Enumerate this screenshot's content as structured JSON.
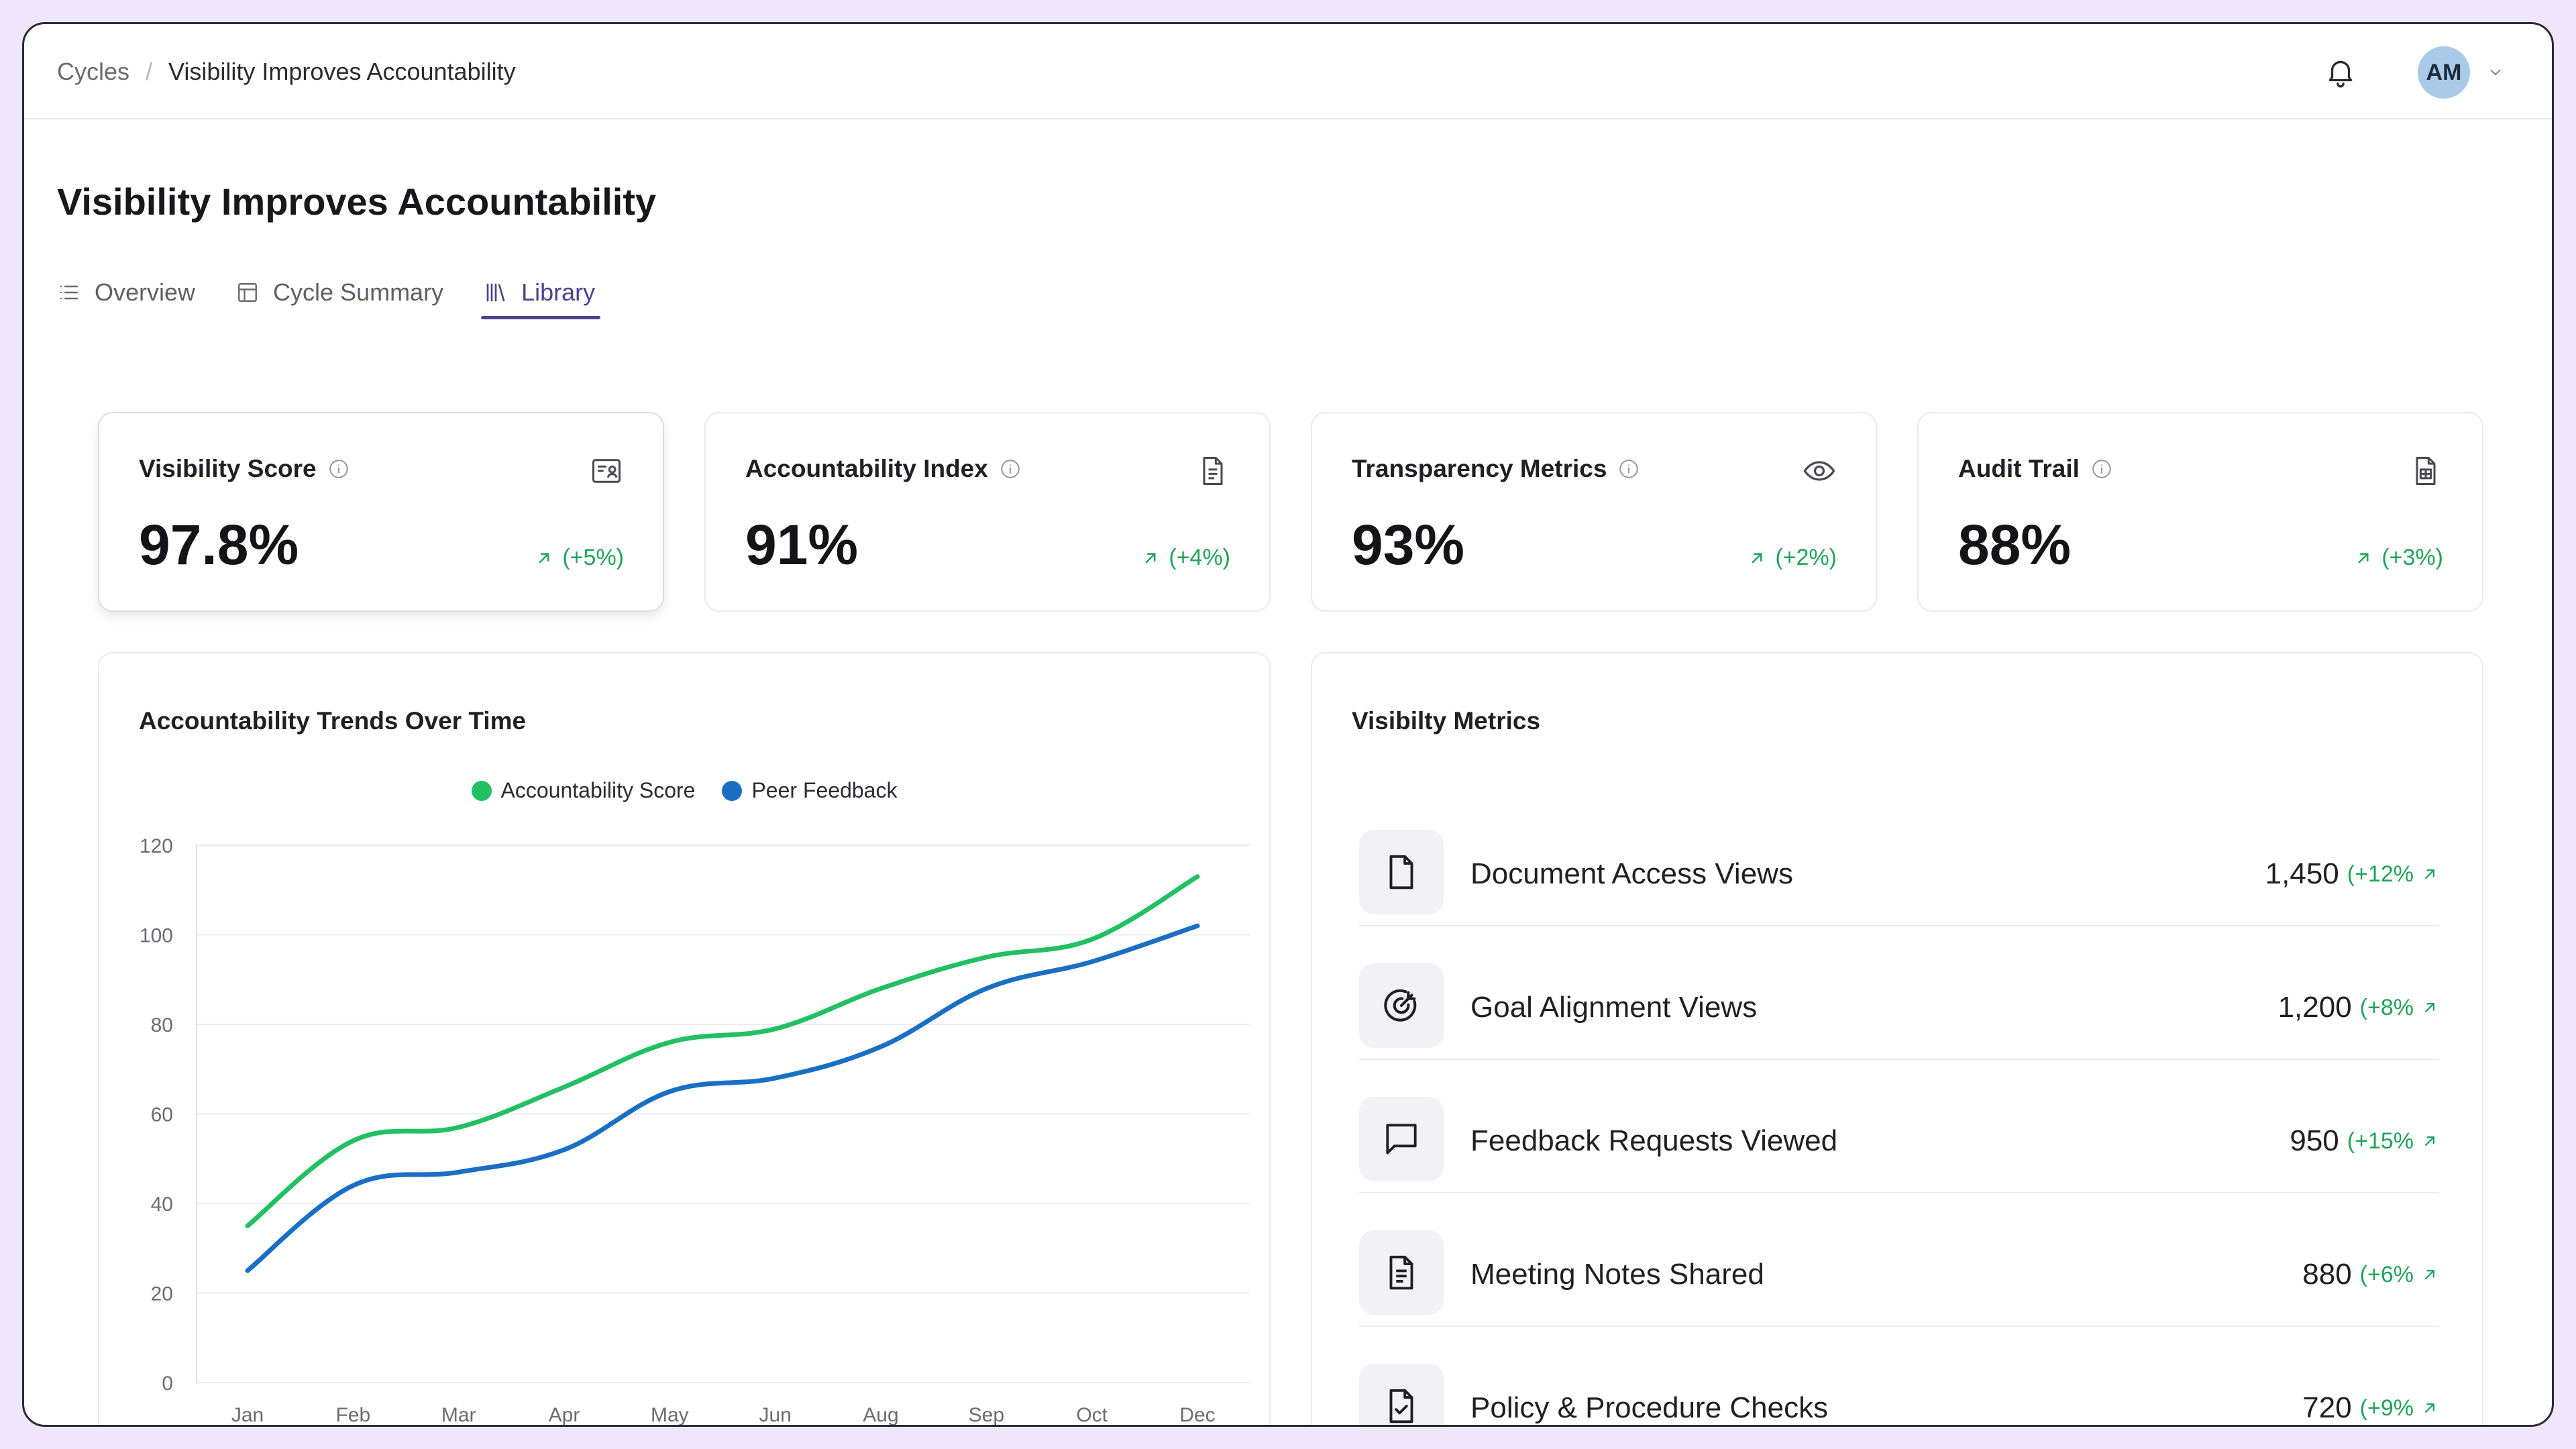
{
  "breadcrumb": {
    "root": "Cycles",
    "separator": "/",
    "current": "Visibility Improves Accountability"
  },
  "header": {
    "avatar_initials": "AM",
    "bell_icon": "bell-icon"
  },
  "page": {
    "title": "Visibility Improves Accountability"
  },
  "tabs": [
    {
      "label": "Overview",
      "icon": "list-icon",
      "active": false
    },
    {
      "label": "Cycle Summary",
      "icon": "layout-icon",
      "active": false
    },
    {
      "label": "Library",
      "icon": "library-icon",
      "active": true
    }
  ],
  "kpis": [
    {
      "title": "Visibility Score",
      "value": "97.8%",
      "delta": "(+5%)",
      "icon": "id-card-icon"
    },
    {
      "title": "Accountability Index",
      "value": "91%",
      "delta": "(+4%)",
      "icon": "document-icon"
    },
    {
      "title": "Transparency Metrics",
      "value": "93%",
      "delta": "(+2%)",
      "icon": "eye-icon"
    },
    {
      "title": "Audit Trail",
      "value": "88%",
      "delta": "(+3%)",
      "icon": "spreadsheet-icon"
    }
  ],
  "trends": {
    "title": "Accountability Trends Over Time"
  },
  "chart_data": {
    "type": "line",
    "title": "Accountability Trends Over Time",
    "categories": [
      "Jan",
      "Feb",
      "Mar",
      "Apr",
      "May",
      "Jun",
      "Aug",
      "Sep",
      "Oct",
      "Dec"
    ],
    "series": [
      {
        "name": "Accountability Score",
        "color": "#22c063",
        "values": [
          35,
          54,
          57,
          66,
          76,
          79,
          88,
          95,
          99,
          113
        ]
      },
      {
        "name": "Peer Feedback",
        "color": "#1a6fc4",
        "values": [
          25,
          44,
          47,
          52,
          65,
          68,
          75,
          88,
          94,
          102
        ]
      }
    ],
    "ylim": [
      0,
      120
    ],
    "yticks": [
      "120",
      "100",
      "80",
      "60",
      "40",
      "20",
      "0"
    ],
    "ytick_values": [
      120,
      100,
      80,
      60,
      40,
      20,
      0
    ],
    "grid": true,
    "legend": "top-center"
  },
  "metrics": {
    "title": "Visibilty Metrics",
    "items": [
      {
        "label": "Document Access Views",
        "value": "1,450",
        "delta": "(+12%",
        "icon": "file-icon"
      },
      {
        "label": "Goal Alignment Views",
        "value": "1,200",
        "delta": "(+8%",
        "icon": "target-icon"
      },
      {
        "label": "Feedback Requests Viewed",
        "value": "950",
        "delta": "(+15%",
        "icon": "message-icon"
      },
      {
        "label": "Meeting Notes Shared",
        "value": "880",
        "delta": "(+6%",
        "icon": "notes-icon"
      },
      {
        "label": "Policy & Procedure Checks",
        "value": "720",
        "delta": "(+9%",
        "icon": "file-check-icon"
      }
    ]
  }
}
